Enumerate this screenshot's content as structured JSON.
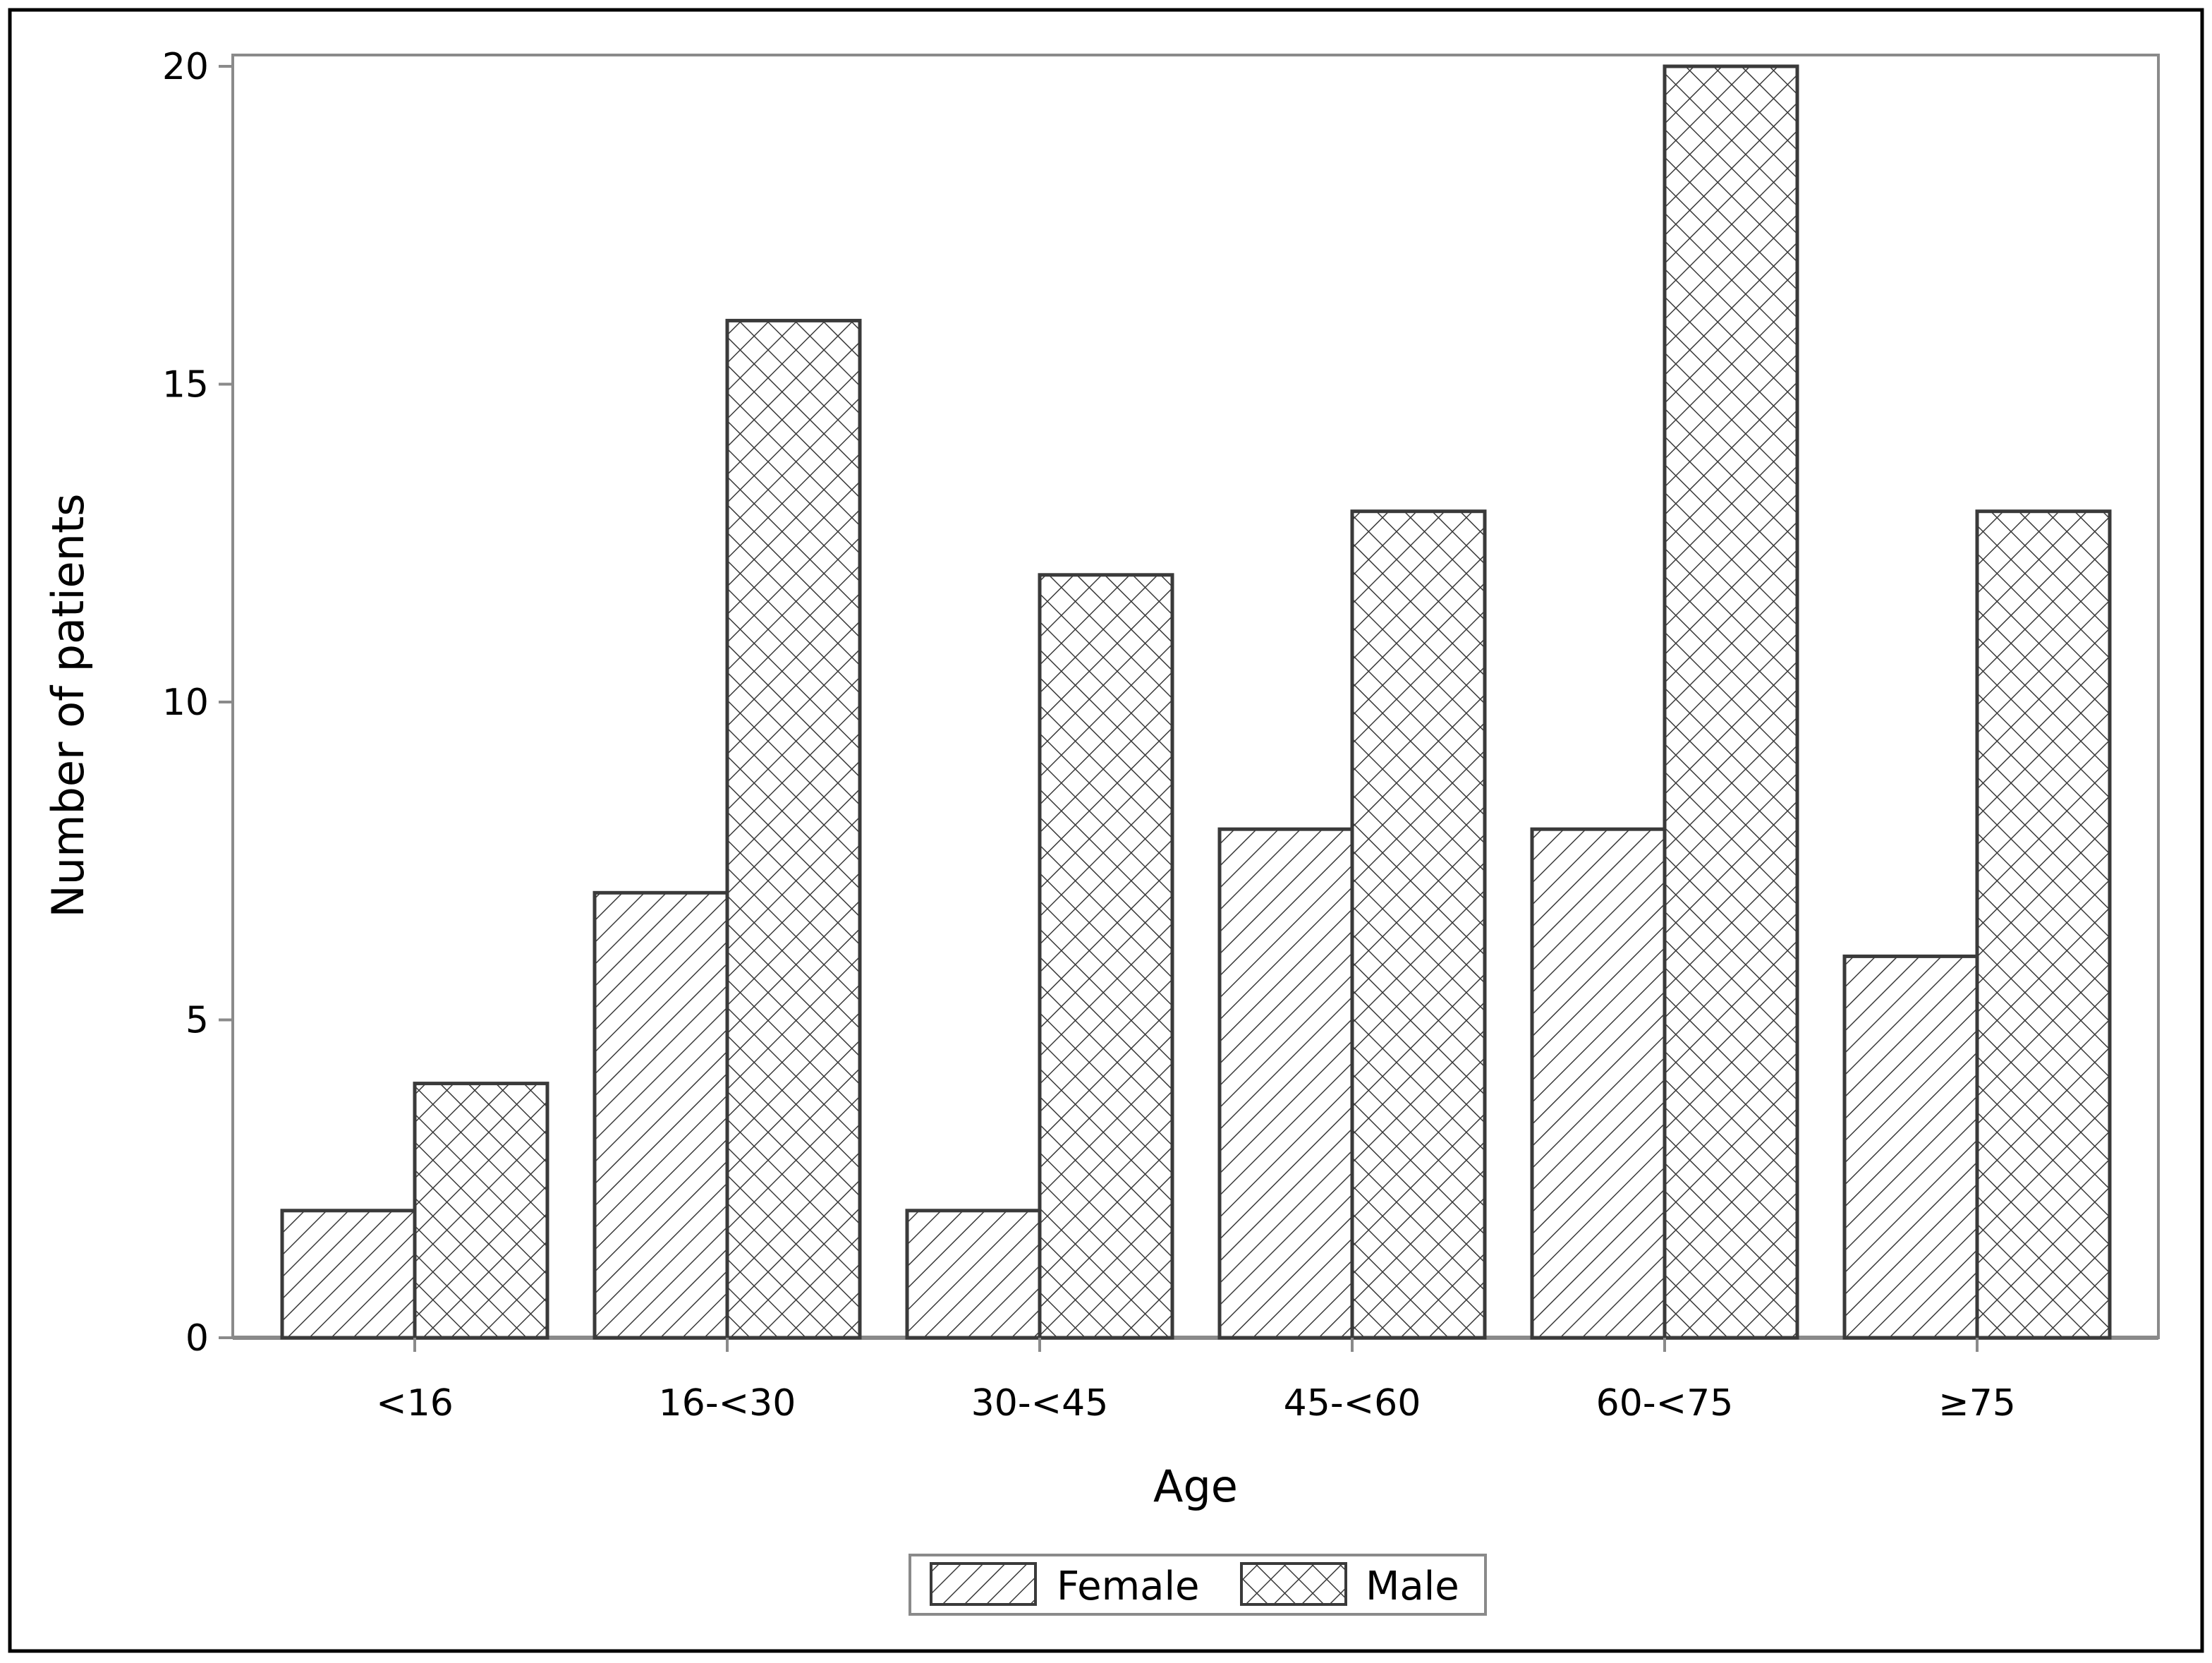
{
  "chart_data": {
    "type": "bar",
    "categories": [
      "<16",
      "16-<30",
      "30-<45",
      "45-<60",
      "60-<75",
      "≥75"
    ],
    "series": [
      {
        "name": "Female",
        "values": [
          2,
          7,
          2,
          8,
          8,
          6
        ],
        "pattern": "diagonal-hatch"
      },
      {
        "name": "Male",
        "values": [
          4,
          16,
          12,
          13,
          20,
          13
        ],
        "pattern": "cross-hatch"
      }
    ],
    "xlabel": "Age",
    "ylabel": "Number of patients",
    "ylim": [
      0,
      20
    ],
    "yticks": [
      0,
      5,
      10,
      15,
      20
    ],
    "grid": false,
    "legend_position": "bottom-center",
    "colors": {
      "bar_stroke": "#3a3a3a",
      "axis": "#8a8a8a",
      "frame": "#000000",
      "fill": "#ffffff"
    }
  }
}
